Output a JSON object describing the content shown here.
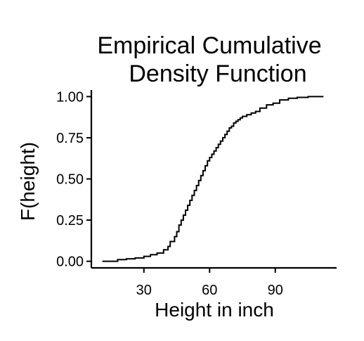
{
  "chart_data": {
    "type": "line",
    "step": true,
    "title_lines": [
      "Empirical Cumulative",
      "Density Function"
    ],
    "xlabel": "Height in inch",
    "ylabel": "F(height)",
    "xlim": [
      6,
      118
    ],
    "ylim": [
      -0.04,
      1.04
    ],
    "xticks": [
      {
        "value": 30,
        "label": "30"
      },
      {
        "value": 60,
        "label": "60"
      },
      {
        "value": 90,
        "label": "90"
      }
    ],
    "yticks": [
      {
        "value": 0.0,
        "label": "0.00"
      },
      {
        "value": 0.25,
        "label": "0.25"
      },
      {
        "value": 0.5,
        "label": "0.50"
      },
      {
        "value": 0.75,
        "label": "0.75"
      },
      {
        "value": 1.0,
        "label": "1.00"
      }
    ],
    "series": [
      {
        "color": "#000000",
        "x": [
          11,
          18,
          22,
          26,
          30,
          33,
          36,
          39,
          41,
          42,
          44,
          45,
          46,
          47,
          48,
          49,
          50,
          51,
          52,
          53,
          54,
          55,
          56,
          57,
          58,
          59,
          60,
          61,
          62,
          63,
          64,
          65,
          66,
          67,
          68,
          69,
          70,
          71,
          72,
          73,
          74,
          75,
          77,
          79,
          81,
          83,
          86,
          89,
          92,
          96,
          100,
          105,
          112
        ],
        "y": [
          0.0,
          0.01,
          0.015,
          0.02,
          0.03,
          0.04,
          0.05,
          0.07,
          0.09,
          0.12,
          0.15,
          0.18,
          0.22,
          0.25,
          0.28,
          0.31,
          0.34,
          0.37,
          0.4,
          0.43,
          0.46,
          0.49,
          0.52,
          0.55,
          0.58,
          0.61,
          0.63,
          0.65,
          0.67,
          0.69,
          0.71,
          0.73,
          0.75,
          0.77,
          0.79,
          0.81,
          0.82,
          0.84,
          0.85,
          0.86,
          0.87,
          0.88,
          0.89,
          0.9,
          0.91,
          0.93,
          0.95,
          0.96,
          0.98,
          0.99,
          0.995,
          1.0,
          1.0
        ]
      }
    ]
  }
}
